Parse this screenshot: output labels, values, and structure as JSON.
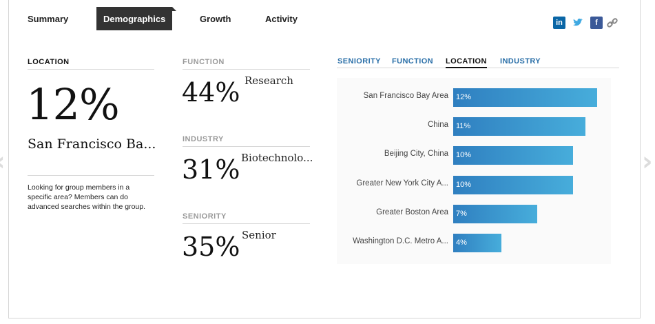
{
  "tabs": [
    {
      "label": "Summary"
    },
    {
      "label": "Demographics"
    },
    {
      "label": "Growth"
    },
    {
      "label": "Activity"
    }
  ],
  "social": {
    "linkedin": "in",
    "facebook": "f"
  },
  "location": {
    "title": "LOCATION",
    "percent": "12%",
    "place": "San Francisco Ba...",
    "description": "Looking for group members in a specific area? Members can do advanced searches within the group."
  },
  "function": {
    "title": "FUNCTION",
    "percent": "44%",
    "label": "Research"
  },
  "industry": {
    "title": "INDUSTRY",
    "percent": "31%",
    "label": "Biotechnolo..."
  },
  "seniority": {
    "title": "SENIORITY",
    "percent": "35%",
    "label": "Senior"
  },
  "chart_tabs": [
    {
      "label": "SENIORITY"
    },
    {
      "label": "FUNCTION"
    },
    {
      "label": "LOCATION"
    },
    {
      "label": "INDUSTRY"
    }
  ],
  "chart_data": {
    "type": "bar",
    "categories": [
      "San Francisco Bay Area",
      "China",
      "Beijing City, China",
      "Greater New York City A...",
      "Greater Boston Area",
      "Washington D.C. Metro A..."
    ],
    "values": [
      12,
      11,
      10,
      10,
      7,
      4
    ],
    "value_labels": [
      "12%",
      "11%",
      "10%",
      "10%",
      "7%",
      "4%"
    ]
  },
  "colors": {
    "accent_tab": "#2a6fa8",
    "bar_start": "#2f7fc0",
    "bar_end": "#47addb",
    "active_tab_bg": "#333333"
  }
}
